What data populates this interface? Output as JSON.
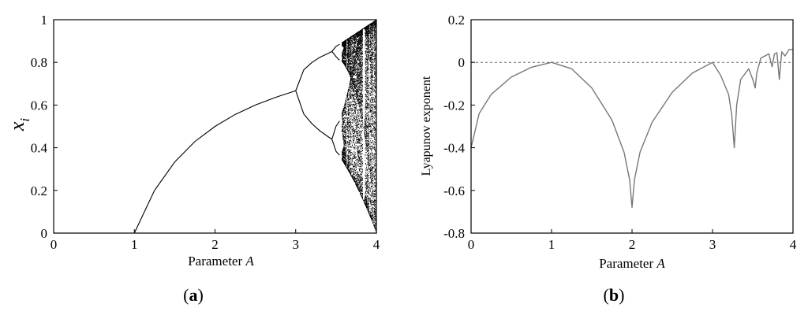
{
  "chart_data": [
    {
      "type": "scatter",
      "panel_label": "(a)",
      "caption_parts": [
        "(",
        "a",
        ")"
      ],
      "xlabel": "Parameter ",
      "xlabel_symbol": "A",
      "ylabel": "x",
      "ylabel_subscript": "i",
      "xlim": [
        0,
        4
      ],
      "ylim": [
        0,
        1
      ],
      "x_ticks": [
        {
          "value": 0,
          "label": "0"
        },
        {
          "value": 1,
          "label": "1"
        },
        {
          "value": 2,
          "label": "2"
        },
        {
          "value": 3,
          "label": "3"
        },
        {
          "value": 4,
          "label": "4"
        }
      ],
      "y_ticks": [
        {
          "value": 0,
          "label": "0"
        },
        {
          "value": 0.2,
          "label": "0.2"
        },
        {
          "value": 0.4,
          "label": "0.4"
        },
        {
          "value": 0.6,
          "label": "0.6"
        },
        {
          "value": 0.8,
          "label": "0.8"
        },
        {
          "value": 1,
          "label": "1"
        }
      ],
      "grid": false,
      "legend": "none",
      "color": "#000000",
      "series": [
        {
          "x": [
            1.0,
            1.25,
            1.5,
            1.75,
            2.0,
            2.25,
            2.5,
            2.75,
            3.0
          ],
          "y": [
            0.0,
            0.2,
            0.333,
            0.429,
            0.5,
            0.556,
            0.6,
            0.636,
            0.667
          ]
        },
        {
          "x": [
            3.0,
            3.1,
            3.2,
            3.3,
            3.4,
            3.449
          ],
          "y": [
            0.667,
            0.765,
            0.799,
            0.824,
            0.842,
            0.851
          ]
        },
        {
          "x": [
            3.0,
            3.1,
            3.2,
            3.3,
            3.4,
            3.449
          ],
          "y": [
            0.667,
            0.558,
            0.513,
            0.479,
            0.452,
            0.44
          ]
        },
        {
          "x": [
            3.449,
            3.5,
            3.544
          ],
          "y": [
            0.851,
            0.875,
            0.885
          ]
        },
        {
          "x": [
            3.449,
            3.5,
            3.544
          ],
          "y": [
            0.851,
            0.827,
            0.81
          ]
        },
        {
          "x": [
            3.449,
            3.5,
            3.544
          ],
          "y": [
            0.44,
            0.501,
            0.525
          ]
        },
        {
          "x": [
            3.449,
            3.5,
            3.544
          ],
          "y": [
            0.44,
            0.383,
            0.365
          ]
        }
      ],
      "chaotic_region": {
        "x_start": 3.57,
        "x_end": 4.0
      }
    },
    {
      "type": "line",
      "panel_label": "(b)",
      "caption_parts": [
        "(",
        "b",
        ")"
      ],
      "xlabel": "Parameter ",
      "xlabel_symbol": "A",
      "ylabel": "Lyapunov exponent",
      "xlim": [
        0,
        4
      ],
      "ylim": [
        -0.8,
        0.2
      ],
      "x_ticks": [
        {
          "value": 0,
          "label": "0"
        },
        {
          "value": 1,
          "label": "1"
        },
        {
          "value": 2,
          "label": "2"
        },
        {
          "value": 3,
          "label": "3"
        },
        {
          "value": 4,
          "label": "4"
        }
      ],
      "y_ticks": [
        {
          "value": -0.8,
          "label": "-0.8"
        },
        {
          "value": -0.6,
          "label": "-0.6"
        },
        {
          "value": -0.4,
          "label": "-0.4"
        },
        {
          "value": -0.2,
          "label": "-0.2"
        },
        {
          "value": 0,
          "label": "0"
        },
        {
          "value": 0.2,
          "label": "0.2"
        }
      ],
      "reference_line": {
        "y": 0,
        "style": "dashed"
      },
      "grid": false,
      "legend": "none",
      "color": "#777777",
      "series": [
        {
          "x": [
            0.0,
            0.1,
            0.25,
            0.5,
            0.75,
            1.0,
            1.25,
            1.5,
            1.75,
            1.9,
            1.97,
            2.0,
            2.03,
            2.1,
            2.25,
            2.5,
            2.75,
            3.0,
            3.1,
            3.2,
            3.24,
            3.27,
            3.3,
            3.35,
            3.45,
            3.5,
            3.53,
            3.55,
            3.6,
            3.65,
            3.7,
            3.74,
            3.77,
            3.8,
            3.83,
            3.86,
            3.9,
            3.95,
            4.0
          ],
          "y": [
            -0.4,
            -0.24,
            -0.15,
            -0.069,
            -0.023,
            0.0,
            -0.03,
            -0.12,
            -0.27,
            -0.42,
            -0.55,
            -0.68,
            -0.55,
            -0.42,
            -0.28,
            -0.14,
            -0.05,
            0.0,
            -0.06,
            -0.15,
            -0.25,
            -0.4,
            -0.2,
            -0.08,
            -0.03,
            -0.08,
            -0.12,
            -0.05,
            0.02,
            0.03,
            0.04,
            -0.02,
            0.04,
            0.045,
            -0.08,
            0.05,
            0.03,
            0.06,
            0.06
          ]
        }
      ]
    }
  ]
}
